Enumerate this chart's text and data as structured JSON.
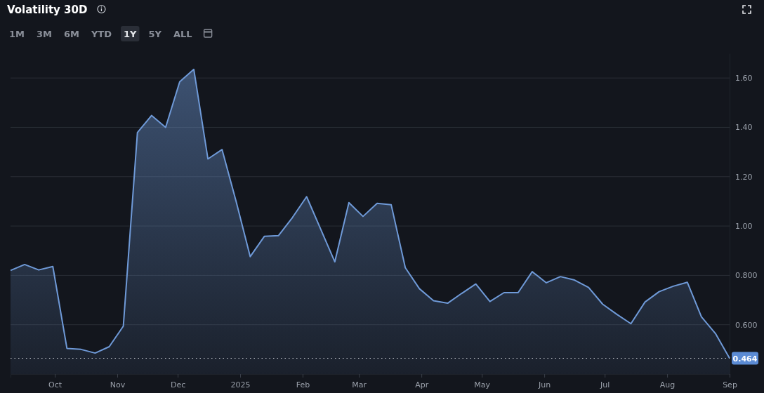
{
  "chart_data": {
    "type": "area",
    "title": "Volatility 30D",
    "annotations": [
      "1M",
      "3M",
      "6M",
      "YTD",
      "1Y",
      "5Y",
      "ALL"
    ],
    "x": [
      "2024-09-09",
      "2024-09-16",
      "2024-09-23",
      "2024-09-30",
      "2024-10-07",
      "2024-10-14",
      "2024-10-21",
      "2024-10-28",
      "2024-11-04",
      "2024-11-11",
      "2024-11-18",
      "2024-11-25",
      "2024-12-02",
      "2024-12-09",
      "2024-12-16",
      "2024-12-23",
      "2024-12-30",
      "2025-01-06",
      "2025-01-13",
      "2025-01-20",
      "2025-01-27",
      "2025-02-03",
      "2025-02-10",
      "2025-02-17",
      "2025-02-24",
      "2025-03-03",
      "2025-03-10",
      "2025-03-17",
      "2025-03-24",
      "2025-03-31",
      "2025-04-07",
      "2025-04-14",
      "2025-04-21",
      "2025-04-28",
      "2025-05-05",
      "2025-05-12",
      "2025-05-19",
      "2025-05-26",
      "2025-06-02",
      "2025-06-09",
      "2025-06-16",
      "2025-06-23",
      "2025-06-30",
      "2025-07-07",
      "2025-07-14",
      "2025-07-21",
      "2025-07-28",
      "2025-08-04",
      "2025-08-11",
      "2025-08-18",
      "2025-08-25",
      "2025-09-01"
    ],
    "values": [
      0.82,
      0.844,
      0.822,
      0.836,
      0.504,
      0.5,
      0.485,
      0.511,
      0.594,
      1.379,
      1.448,
      1.4,
      1.585,
      1.635,
      1.272,
      1.31,
      1.1,
      0.876,
      0.958,
      0.961,
      1.035,
      1.119,
      0.987,
      0.855,
      1.095,
      1.039,
      1.092,
      1.086,
      0.831,
      0.746,
      0.697,
      0.687,
      0.727,
      0.765,
      0.694,
      0.73,
      0.73,
      0.815,
      0.77,
      0.795,
      0.781,
      0.751,
      0.683,
      0.642,
      0.604,
      0.692,
      0.734,
      0.756,
      0.772,
      0.632,
      0.564,
      0.464
    ],
    "color": "#6f9ad8",
    "xlim": [
      "2024-09-09",
      "2025-09-01"
    ],
    "xticks": [
      {
        "value": "2024-10-01",
        "label": "Oct"
      },
      {
        "value": "2024-11-01",
        "label": "Nov"
      },
      {
        "value": "2024-12-01",
        "label": "Dec"
      },
      {
        "value": "2025-01-01",
        "label": "2025"
      },
      {
        "value": "2025-02-01",
        "label": "Feb"
      },
      {
        "value": "2025-03-01",
        "label": "Mar"
      },
      {
        "value": "2025-04-01",
        "label": "Apr"
      },
      {
        "value": "2025-05-01",
        "label": "May"
      },
      {
        "value": "2025-06-01",
        "label": "Jun"
      },
      {
        "value": "2025-07-01",
        "label": "Jul"
      },
      {
        "value": "2025-08-01",
        "label": "Aug"
      },
      {
        "value": "2025-09-01",
        "label": "Sep"
      }
    ],
    "ylim": [
      0.4,
      1.7
    ],
    "yticks": [
      {
        "value": 0.6,
        "label": "0.600"
      },
      {
        "value": 0.8,
        "label": "0.800"
      },
      {
        "value": 1.0,
        "label": "1.00"
      },
      {
        "value": 1.2,
        "label": "1.20"
      },
      {
        "value": 1.4,
        "label": "1.40"
      },
      {
        "value": 1.6,
        "label": "1.60"
      }
    ],
    "grid": "y",
    "ref_lines": [
      {
        "axis": "y",
        "value": 0.464,
        "label": "0.464",
        "line_style": "dotted",
        "color": "#c8ccd4"
      }
    ]
  }
}
